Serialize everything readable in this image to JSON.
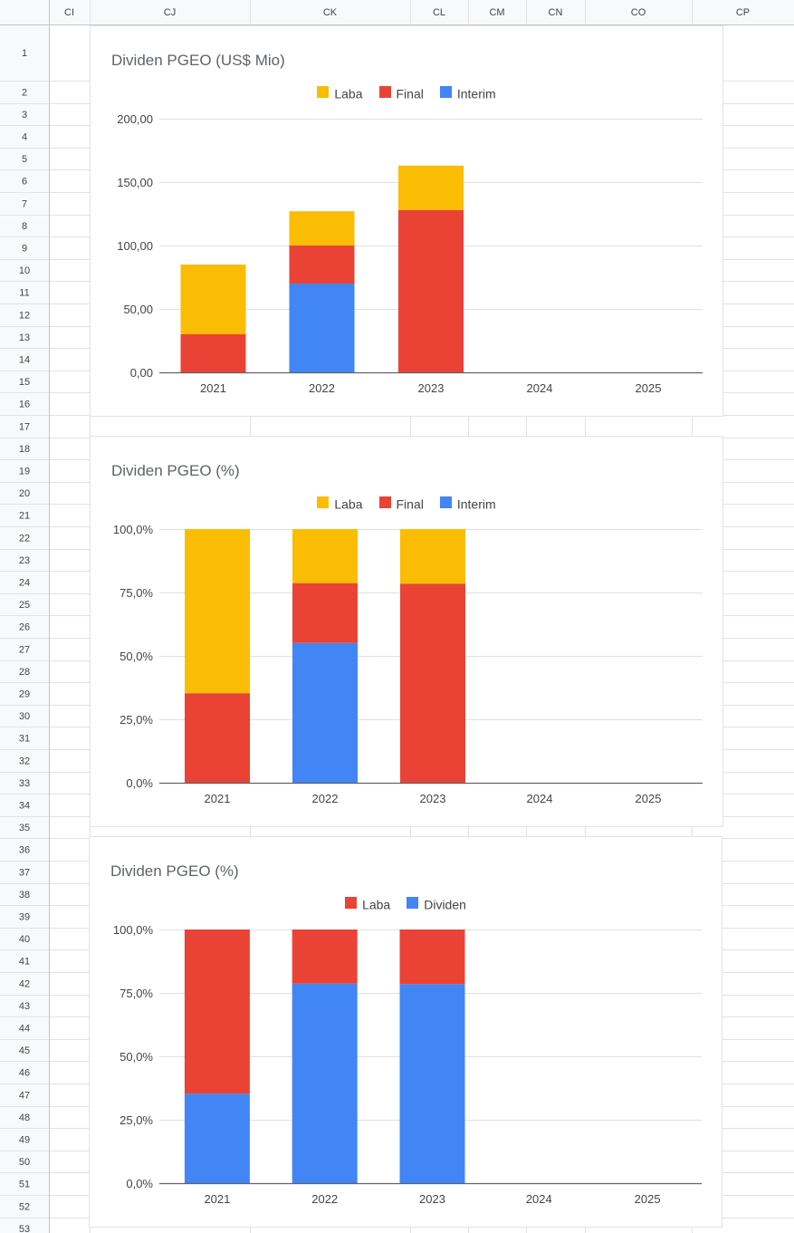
{
  "spreadsheet": {
    "columns": [
      "CI",
      "CJ",
      "CK",
      "CL",
      "CM",
      "CN",
      "CO",
      "CP"
    ],
    "rows": [
      "1",
      "2",
      "3",
      "4",
      "5",
      "6",
      "7",
      "8",
      "9",
      "10",
      "11",
      "12",
      "13",
      "14",
      "15",
      "16",
      "17",
      "18",
      "19",
      "20",
      "21",
      "22",
      "23",
      "24",
      "25",
      "26",
      "27",
      "28",
      "29",
      "30",
      "31",
      "32",
      "33",
      "34",
      "35",
      "36",
      "37",
      "38",
      "39",
      "40",
      "41",
      "42",
      "43",
      "44",
      "45",
      "46",
      "47",
      "48",
      "49",
      "50",
      "51",
      "52",
      "53"
    ]
  },
  "colors": {
    "laba": "#fbbc04",
    "final": "#ea4335",
    "interim": "#4285f4"
  },
  "chart_data": [
    {
      "type": "bar",
      "stacked": true,
      "title": "Dividen PGEO (US$ Mio)",
      "categories": [
        "2021",
        "2022",
        "2023",
        "2024",
        "2025"
      ],
      "series": [
        {
          "name": "Interim",
          "color": "#4285f4",
          "values": [
            0,
            70,
            0,
            0,
            0
          ]
        },
        {
          "name": "Final",
          "color": "#ea4335",
          "values": [
            30,
            30,
            128,
            0,
            0
          ]
        },
        {
          "name": "Laba",
          "color": "#fbbc04",
          "values": [
            55,
            27,
            35,
            0,
            0
          ]
        }
      ],
      "legend": [
        "Laba",
        "Final",
        "Interim"
      ],
      "legend_position": "top",
      "ylim": [
        0,
        200
      ],
      "yticks": [
        0,
        50,
        100,
        150,
        200
      ],
      "ytick_labels": [
        "0,00",
        "50,00",
        "100,00",
        "150,00",
        "200,00"
      ],
      "xlabel": "",
      "ylabel": "",
      "grid": true
    },
    {
      "type": "bar",
      "stacked": true,
      "title": "Dividen PGEO (%)",
      "categories": [
        "2021",
        "2022",
        "2023",
        "2024",
        "2025"
      ],
      "series": [
        {
          "name": "Interim",
          "color": "#4285f4",
          "values": [
            0,
            55.1,
            0,
            0,
            0
          ]
        },
        {
          "name": "Final",
          "color": "#ea4335",
          "values": [
            35.3,
            23.6,
            78.5,
            0,
            0
          ]
        },
        {
          "name": "Laba",
          "color": "#fbbc04",
          "values": [
            64.7,
            21.3,
            21.5,
            0,
            0
          ]
        }
      ],
      "legend": [
        "Laba",
        "Final",
        "Interim"
      ],
      "legend_position": "top",
      "ylim": [
        0,
        100
      ],
      "yticks": [
        0,
        25,
        50,
        75,
        100
      ],
      "ytick_labels": [
        "0,0%",
        "25,0%",
        "50,0%",
        "75,0%",
        "100,0%"
      ],
      "xlabel": "",
      "ylabel": "",
      "grid": true
    },
    {
      "type": "bar",
      "stacked": true,
      "title": "Dividen PGEO (%)",
      "categories": [
        "2021",
        "2022",
        "2023",
        "2024",
        "2025"
      ],
      "series": [
        {
          "name": "Dividen",
          "color": "#4285f4",
          "values": [
            35.3,
            78.7,
            78.5,
            0,
            0
          ]
        },
        {
          "name": "Laba",
          "color": "#ea4335",
          "values": [
            64.7,
            21.3,
            21.5,
            0,
            0
          ]
        }
      ],
      "legend": [
        "Laba",
        "Dividen"
      ],
      "legend_position": "top",
      "ylim": [
        0,
        100
      ],
      "yticks": [
        0,
        25,
        50,
        75,
        100
      ],
      "ytick_labels": [
        "0,0%",
        "25,0%",
        "50,0%",
        "75,0%",
        "100,0%"
      ],
      "xlabel": "",
      "ylabel": "",
      "grid": true
    }
  ]
}
